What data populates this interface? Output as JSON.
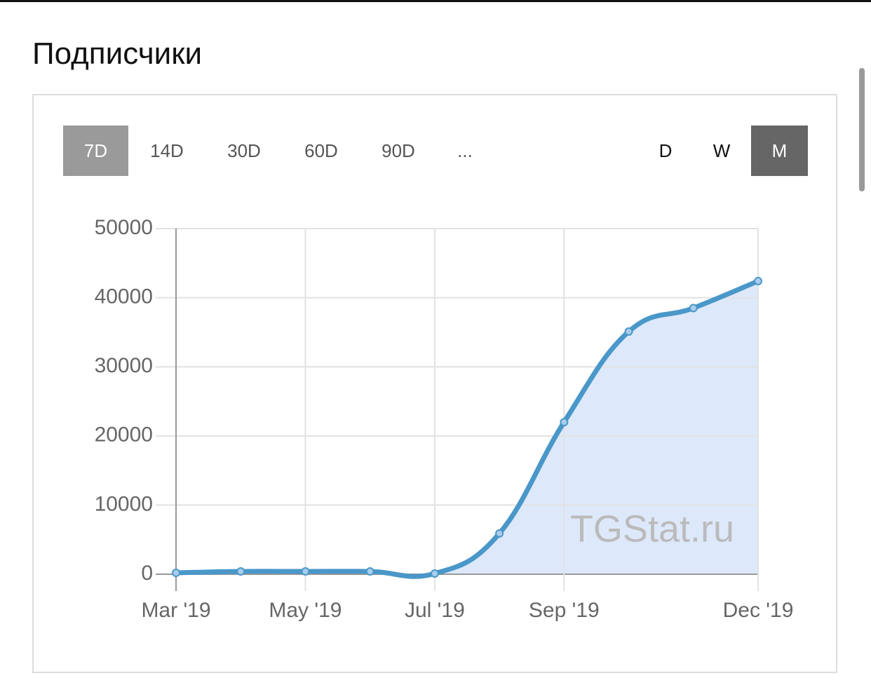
{
  "header": {
    "title": "Подписчики"
  },
  "buttons": {
    "range": [
      "7D",
      "14D",
      "30D",
      "60D",
      "90D",
      "..."
    ],
    "period": [
      "D",
      "W",
      "M"
    ]
  },
  "watermark": "TGStat.ru",
  "chart_data": {
    "type": "area",
    "categories": [
      "Mar '19",
      null,
      "May '19",
      null,
      "Jul '19",
      null,
      "Sep '19",
      null,
      null,
      "Dec '19"
    ],
    "values": [
      200,
      400,
      400,
      400,
      100,
      5900,
      22000,
      35100,
      38500,
      42400
    ],
    "color": "#4a97c9",
    "ylim": [
      0,
      50000
    ],
    "yticks": [
      0,
      10000,
      20000,
      30000,
      40000,
      50000
    ],
    "grid": true
  }
}
